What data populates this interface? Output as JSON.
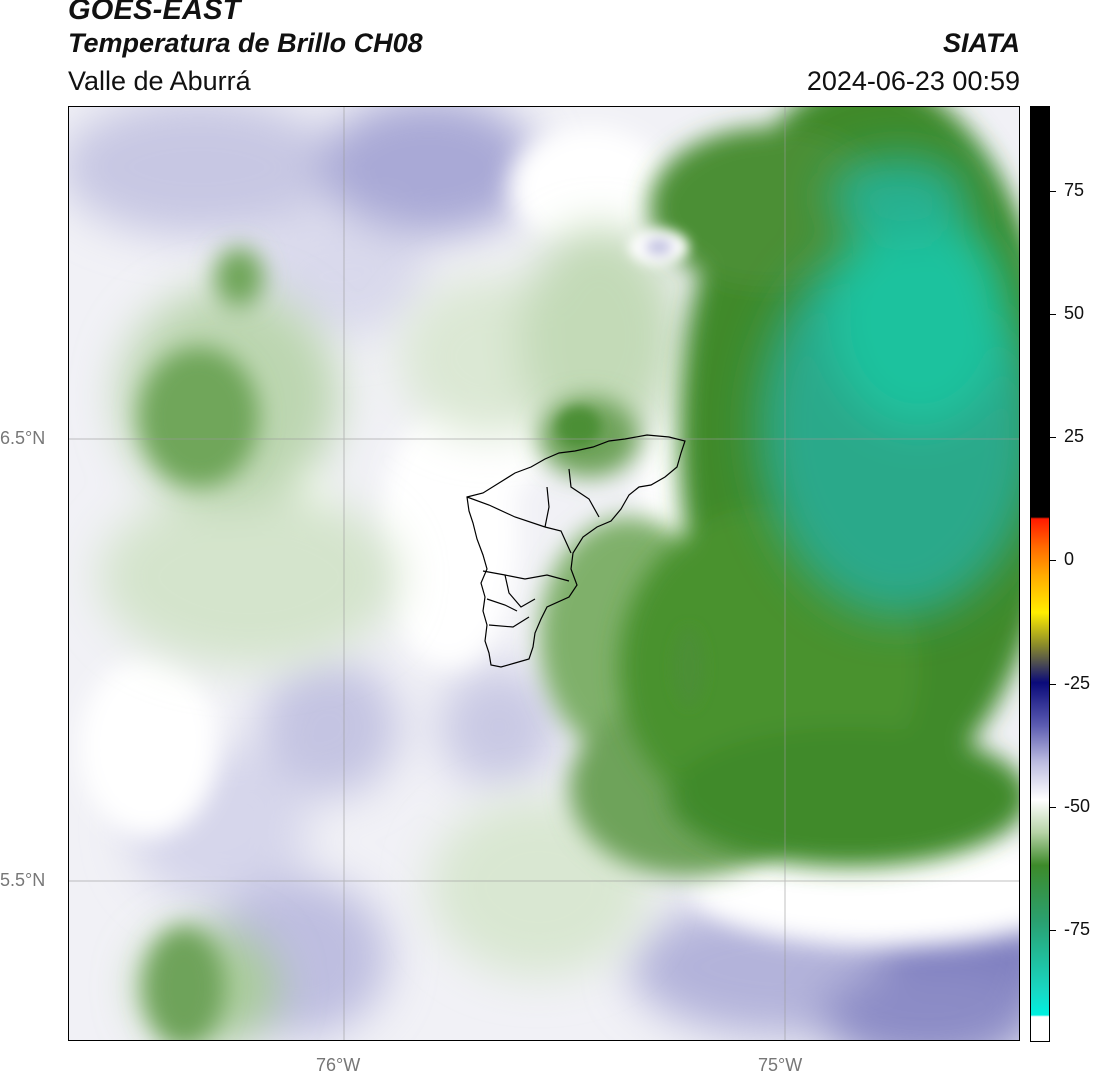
{
  "header": {
    "satellite": "GOES-EAST",
    "product": "Temperatura de Brillo CH08",
    "region": "Valle de Aburrá",
    "organization": "SIATA",
    "timestamp": "2024-06-23 00:59"
  },
  "map": {
    "lat_labels": [
      "6.5°N",
      "5.5°N"
    ],
    "lon_labels": [
      "76°W",
      "75°W"
    ],
    "gridlines": true,
    "layers": [
      "brightness-temperature-field",
      "valle-de-aburra-municipal-boundaries"
    ]
  },
  "colorbar": {
    "tick_labels": [
      "75",
      "50",
      "25",
      "0",
      "-25",
      "-50",
      "-75"
    ],
    "colors": {
      "hot": "#000000",
      "red": "#ff1a00",
      "orange": "#ff8c00",
      "yellow": "#ffee00",
      "olive": "#8a8a2a",
      "navy": "#0a0a7a",
      "lavender": "#9a9ad0",
      "white": "#ffffff",
      "green": "#3d8a2a",
      "cyan": "#18e0d0"
    }
  }
}
